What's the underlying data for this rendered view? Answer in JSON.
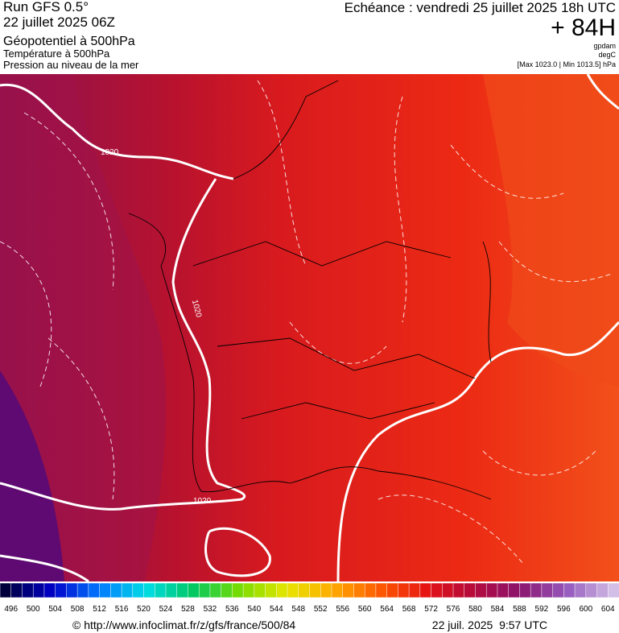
{
  "header": {
    "run": "Run GFS 0.5°",
    "date": "22 juillet 2025 06Z",
    "lines": [
      "Géopotentiel à 500hPa",
      "Température à 500hPa",
      "Pression au niveau de la mer"
    ],
    "valid": "Echéance : vendredi 25 juillet 2025 18h UTC",
    "lead": "+ 84H",
    "units": [
      "gpdam",
      "degC",
      "[Max 1023.0 | Min 1013.5] hPa"
    ]
  },
  "map": {
    "isobar_labels": [
      "1020",
      "1020",
      "1020"
    ]
  },
  "colorbar": {
    "labels": [
      496,
      500,
      504,
      508,
      512,
      516,
      520,
      524,
      528,
      532,
      536,
      540,
      544,
      548,
      552,
      556,
      560,
      564,
      568,
      572,
      576,
      580,
      584,
      588,
      592,
      596,
      600,
      604
    ]
  },
  "footer": {
    "url": "© http://www.infoclimat.fr/z/gfs/france/500/84",
    "time": "22 juil. 2025  9:57 UTC"
  }
}
